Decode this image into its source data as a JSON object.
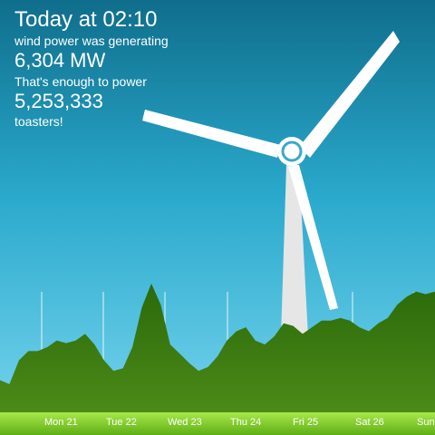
{
  "header": {
    "time_text": "Today at 02:10",
    "generating_label": "wind power was generating",
    "power_value": "6,304 MW",
    "enough_label": "That's enough to power",
    "toaster_count": "5,253,333",
    "toaster_label": "toasters!"
  },
  "chart": {
    "days": [
      "Mon 21",
      "Tue 22",
      "Wed 23",
      "Thu 24",
      "Fri 25",
      "Sat 26",
      "Sun"
    ],
    "trend_percent": [
      25,
      22,
      40,
      47,
      47,
      50,
      55,
      53,
      55,
      60,
      52,
      40,
      32,
      34,
      50,
      80,
      98,
      82,
      52,
      45,
      38,
      32,
      35,
      43,
      55,
      62,
      65,
      55,
      52,
      58,
      68,
      66,
      60,
      65,
      70,
      70,
      72,
      70,
      65,
      62,
      68,
      72,
      82,
      88,
      92,
      90,
      92
    ],
    "colors": {
      "sky_top": "#0f6e8c",
      "sky_bottom": "#7ad6f0",
      "grass_top": "#2a6a0a",
      "grass_bottom": "#4c8a18",
      "ground": "#6fc21e"
    }
  }
}
